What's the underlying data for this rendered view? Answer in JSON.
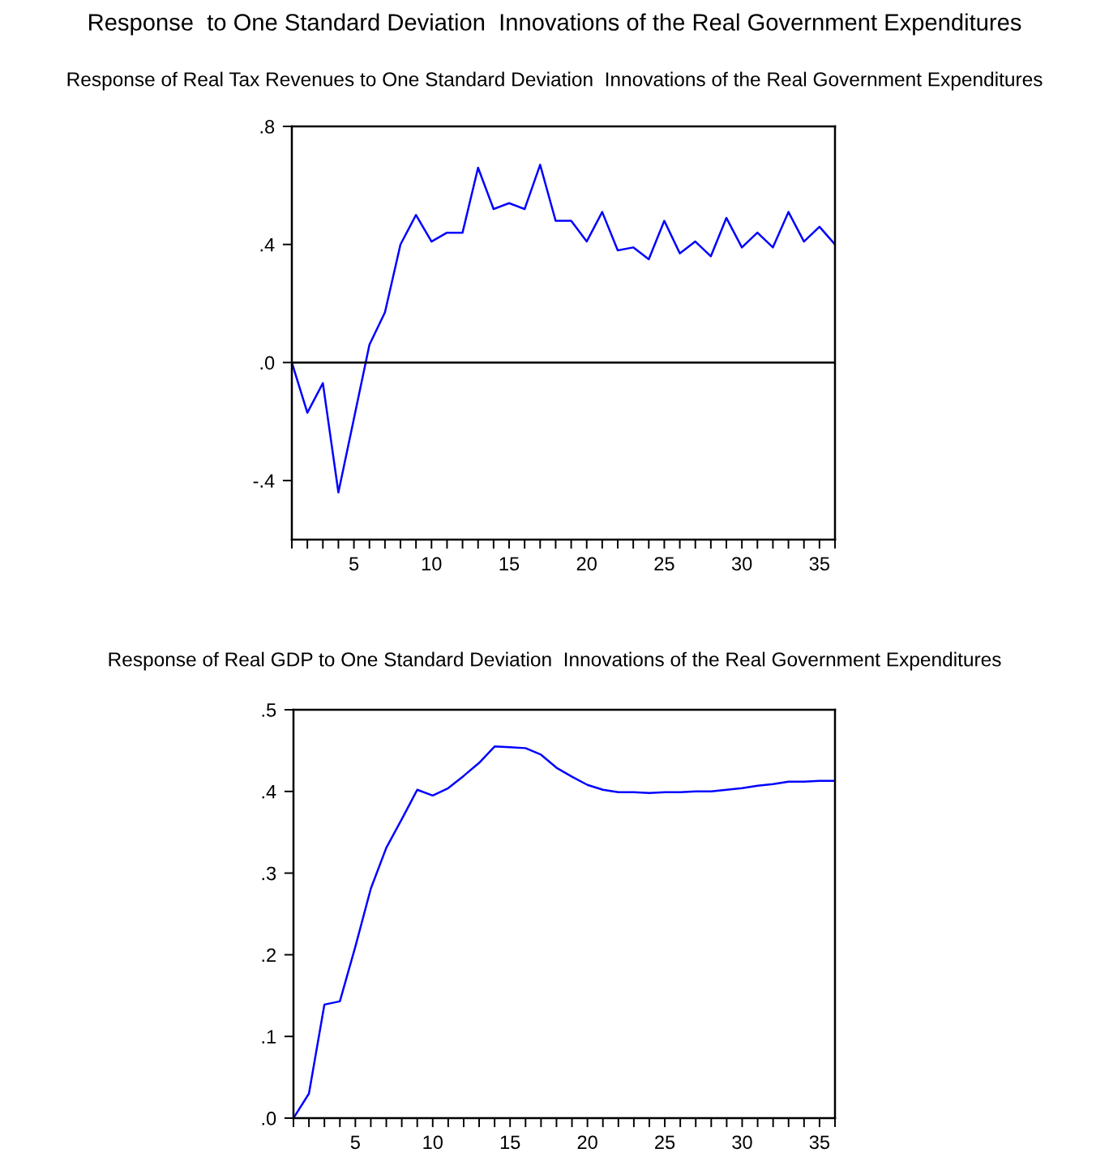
{
  "chart_data": [
    {
      "type": "line",
      "title": "Response  to One Standard Deviation  Innovations of the Real Government Expenditures",
      "subtitle": "Response of Real Tax Revenues to One Standard Deviation  Innovations of the Real Government Expenditures",
      "x": [
        1,
        2,
        3,
        4,
        5,
        6,
        7,
        8,
        9,
        10,
        11,
        12,
        13,
        14,
        15,
        16,
        17,
        18,
        19,
        20,
        21,
        22,
        23,
        24,
        25,
        26,
        27,
        28,
        29,
        30,
        31,
        32,
        33,
        34,
        35,
        36
      ],
      "series": [
        {
          "color": "#0000ff",
          "values": [
            0,
            -0.17,
            -0.07,
            -0.44,
            -0.19,
            0.06,
            0.17,
            0.4,
            0.5,
            0.41,
            0.44,
            0.44,
            0.66,
            0.52,
            0.54,
            0.52,
            0.67,
            0.48,
            0.48,
            0.41,
            0.51,
            0.38,
            0.39,
            0.35,
            0.48,
            0.37,
            0.41,
            0.36,
            0.49,
            0.39,
            0.44,
            0.39,
            0.51,
            0.41,
            0.46,
            0.4
          ]
        }
      ],
      "xlim": [
        1,
        36
      ],
      "xticks": [
        {
          "value": 1,
          "label": null
        },
        {
          "value": 2,
          "label": null
        },
        {
          "value": 3,
          "label": null
        },
        {
          "value": 4,
          "label": null
        },
        5,
        {
          "value": 6,
          "label": null
        },
        {
          "value": 7,
          "label": null
        },
        {
          "value": 8,
          "label": null
        },
        {
          "value": 9,
          "label": null
        },
        10,
        {
          "value": 11,
          "label": null
        },
        {
          "value": 12,
          "label": null
        },
        {
          "value": 13,
          "label": null
        },
        {
          "value": 14,
          "label": null
        },
        15,
        {
          "value": 16,
          "label": null
        },
        {
          "value": 17,
          "label": null
        },
        {
          "value": 18,
          "label": null
        },
        {
          "value": 19,
          "label": null
        },
        20,
        {
          "value": 21,
          "label": null
        },
        {
          "value": 22,
          "label": null
        },
        {
          "value": 23,
          "label": null
        },
        {
          "value": 24,
          "label": null
        },
        25,
        {
          "value": 26,
          "label": null
        },
        {
          "value": 27,
          "label": null
        },
        {
          "value": 28,
          "label": null
        },
        {
          "value": 29,
          "label": null
        },
        30,
        {
          "value": 31,
          "label": null
        },
        {
          "value": 32,
          "label": null
        },
        {
          "value": 33,
          "label": null
        },
        {
          "value": 34,
          "label": null
        },
        35,
        {
          "value": 36,
          "label": null
        }
      ],
      "ylim": [
        -0.6,
        0.8
      ],
      "yticks": [
        {
          "value": -0.4,
          "label": "-.4"
        },
        {
          "value": 0,
          "label": ".0"
        },
        {
          "value": 0.4,
          "label": ".4"
        },
        {
          "value": 0.8,
          "label": ".8"
        }
      ],
      "ref_lines": [
        {
          "axis": "y",
          "value": 0,
          "label": null,
          "color": "#000000"
        }
      ],
      "grid": false,
      "legend": false
    },
    {
      "type": "line",
      "subtitle": "Response of Real GDP to One Standard Deviation  Innovations of the Real Government Expenditures",
      "x": [
        1,
        2,
        3,
        4,
        5,
        6,
        7,
        8,
        9,
        10,
        11,
        12,
        13,
        14,
        15,
        16,
        17,
        18,
        19,
        20,
        21,
        22,
        23,
        24,
        25,
        26,
        27,
        28,
        29,
        30,
        31,
        32,
        33,
        34,
        35,
        36
      ],
      "series": [
        {
          "color": "#0000ff",
          "values": [
            0,
            0.03,
            0.139,
            0.143,
            0.21,
            0.281,
            0.331,
            0.366,
            0.402,
            0.395,
            0.404,
            0.419,
            0.435,
            0.455,
            0.454,
            0.453,
            0.445,
            0.429,
            0.418,
            0.408,
            0.402,
            0.399,
            0.399,
            0.398,
            0.399,
            0.399,
            0.4,
            0.4,
            0.402,
            0.404,
            0.407,
            0.409,
            0.412,
            0.412,
            0.413,
            0.413
          ]
        }
      ],
      "xlim": [
        1,
        36
      ],
      "xticks": [
        {
          "value": 1,
          "label": null
        },
        {
          "value": 2,
          "label": null
        },
        {
          "value": 3,
          "label": null
        },
        {
          "value": 4,
          "label": null
        },
        5,
        {
          "value": 6,
          "label": null
        },
        {
          "value": 7,
          "label": null
        },
        {
          "value": 8,
          "label": null
        },
        {
          "value": 9,
          "label": null
        },
        10,
        {
          "value": 11,
          "label": null
        },
        {
          "value": 12,
          "label": null
        },
        {
          "value": 13,
          "label": null
        },
        {
          "value": 14,
          "label": null
        },
        15,
        {
          "value": 16,
          "label": null
        },
        {
          "value": 17,
          "label": null
        },
        {
          "value": 18,
          "label": null
        },
        {
          "value": 19,
          "label": null
        },
        20,
        {
          "value": 21,
          "label": null
        },
        {
          "value": 22,
          "label": null
        },
        {
          "value": 23,
          "label": null
        },
        {
          "value": 24,
          "label": null
        },
        25,
        {
          "value": 26,
          "label": null
        },
        {
          "value": 27,
          "label": null
        },
        {
          "value": 28,
          "label": null
        },
        {
          "value": 29,
          "label": null
        },
        30,
        {
          "value": 31,
          "label": null
        },
        {
          "value": 32,
          "label": null
        },
        {
          "value": 33,
          "label": null
        },
        {
          "value": 34,
          "label": null
        },
        35,
        {
          "value": 36,
          "label": null
        }
      ],
      "ylim": [
        0,
        0.5
      ],
      "yticks": [
        {
          "value": 0,
          "label": ".0"
        },
        {
          "value": 0.1,
          "label": ".1"
        },
        {
          "value": 0.2,
          "label": ".2"
        },
        {
          "value": 0.3,
          "label": ".3"
        },
        {
          "value": 0.4,
          "label": ".4"
        },
        {
          "value": 0.5,
          "label": ".5"
        }
      ],
      "grid": false,
      "legend": false
    }
  ]
}
